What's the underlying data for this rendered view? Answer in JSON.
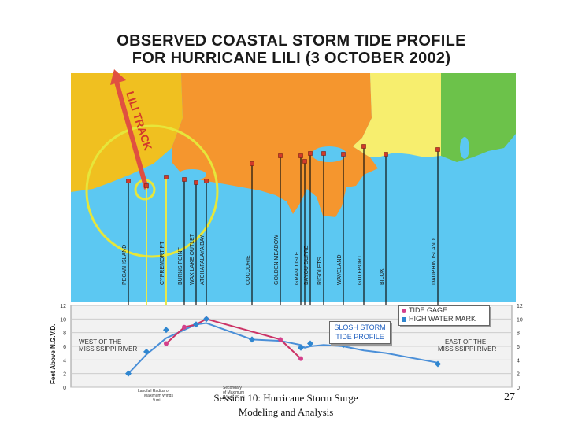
{
  "title": {
    "line1": "OBSERVED COASTAL STORM TIDE PROFILE",
    "line2": "FOR HURRICANE LILI  (3 OCTOBER 2002)"
  },
  "track_label": "LILI TRACK",
  "footer": {
    "line1": "Session 10: Hurricane Storm Surge",
    "line2": "Modeling and Analysis",
    "page_number": "27"
  },
  "colors": {
    "water": "#5cc8f2",
    "land_texas": "#f0c020",
    "land_louisiana": "#f5962e",
    "land_mississippi": "#f7ee6e",
    "land_alabama": "#6cc24a",
    "track": "#e05040",
    "circle": "#e6e63a",
    "tide_gage": "#d4408c",
    "high_water": "#2f86d0",
    "slosh_line": "#4a8fd8",
    "gage_line": "#cc3366",
    "radius_line": "#e8e84a"
  },
  "map": {
    "stations": [
      {
        "name": "PECAN ISLAND",
        "gage": true
      },
      {
        "name": "",
        "gage": false
      },
      {
        "name": "CYPREMORT PT",
        "gage": false
      },
      {
        "name": "BURNS POINT",
        "gage": false
      },
      {
        "name": "WAX LAKE OUTLET",
        "gage": false
      },
      {
        "name": "ATCHAFALAYA BAY",
        "gage": false
      },
      {
        "name": "COCODRIE",
        "gage": false
      },
      {
        "name": "GOLDEN MEADOW",
        "gage": false
      },
      {
        "name": "GRAND ISLE",
        "gage": false
      },
      {
        "name": "",
        "gage": false
      },
      {
        "name": "BAYOU DUPRE",
        "gage": false
      },
      {
        "name": "RIGOLETS",
        "gage": false
      },
      {
        "name": "WAVELAND",
        "gage": false
      },
      {
        "name": "GULFPORT",
        "gage": false
      },
      {
        "name": "BILOXI",
        "gage": false
      },
      {
        "name": "DAUPHIN ISLAND",
        "gage": false
      }
    ]
  },
  "profile": {
    "ylabel": "Feet Above N.G.V.D.",
    "left_region": "WEST OF THE MISSISSIPPI RIVER",
    "left_region_lines": [
      "WEST OF THE",
      "MISSISSIPPI RIVER"
    ],
    "right_region_lines": [
      "EAST OF THE",
      "MISSISSIPPI RIVER"
    ],
    "landfall_label_lines": [
      "Landfall Radius of",
      "Maximum Winds",
      "9 mi"
    ],
    "secondary_label_lines": [
      "Secondary",
      "of Maximum",
      "Winds 40 mi"
    ],
    "slosh_label_lines": [
      "SLOSH STORM",
      "TIDE PROFILE"
    ],
    "legend": {
      "tide_gage": "TIDE GAGE",
      "high_water_mark": "HIGH WATER MARK"
    }
  },
  "chart_data": {
    "type": "line",
    "ylabel": "Feet Above N.G.V.D.",
    "ylim": [
      0,
      12
    ],
    "yticks": [
      0,
      2,
      4,
      6,
      8,
      10,
      12
    ],
    "x_stations": [
      1,
      2,
      3,
      4,
      5,
      6,
      7,
      8,
      9,
      10,
      11,
      12,
      13,
      14,
      15,
      16
    ],
    "grid": true,
    "legend_position": "top-right",
    "series": [
      {
        "name": "SLOSH STORM TIDE PROFILE",
        "x": [
          1,
          2,
          3,
          4,
          5,
          6,
          7,
          8,
          9,
          10,
          11,
          12,
          13,
          14,
          15,
          16
        ],
        "values": [
          2.0,
          4.8,
          7.2,
          8.4,
          9.2,
          9.4,
          7.0,
          6.8,
          6.2,
          5.8,
          6.0,
          6.2,
          6.0,
          5.4,
          5.0,
          3.6
        ]
      },
      {
        "name": "TIDE GAGE",
        "x": [
          3,
          4,
          5,
          6,
          8,
          9
        ],
        "values": [
          6.4,
          8.8,
          9.2,
          10.0,
          7.0,
          4.2
        ]
      },
      {
        "name": "HIGH WATER MARK",
        "x": [
          1,
          2,
          3,
          5,
          6,
          7,
          9,
          11,
          13,
          16
        ],
        "values": [
          2.0,
          5.2,
          8.4,
          9.2,
          10.0,
          7.0,
          5.8,
          6.4,
          6.2,
          3.4
        ]
      }
    ]
  }
}
